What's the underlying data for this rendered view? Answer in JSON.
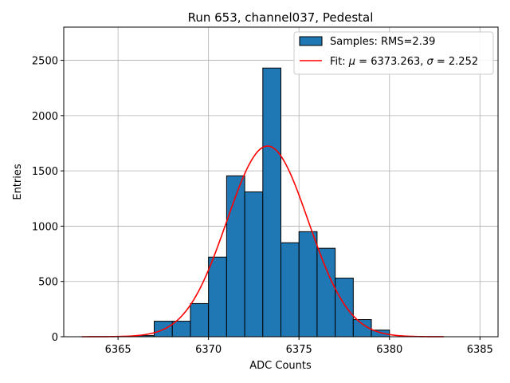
{
  "chart_data": {
    "type": "bar",
    "title": "Run 653, channel037, Pedestal",
    "xlabel": "ADC Counts",
    "ylabel": "Entries",
    "xlim": [
      6362,
      6386
    ],
    "ylim": [
      0,
      2800
    ],
    "xticks": [
      6365,
      6370,
      6375,
      6380,
      6385
    ],
    "yticks": [
      0,
      500,
      1000,
      1500,
      2000,
      2500
    ],
    "grid": true,
    "legend_position": "top-right",
    "bin_edges": [
      6366,
      6367,
      6368,
      6369,
      6370,
      6371,
      6372,
      6373,
      6374,
      6375,
      6376,
      6377,
      6378,
      6379,
      6380
    ],
    "counts": [
      10,
      140,
      140,
      300,
      720,
      1455,
      1310,
      2430,
      850,
      950,
      800,
      530,
      155,
      60
    ],
    "bar_color": "#1f77b4",
    "fit": {
      "mu": 6373.263,
      "sigma": 2.252,
      "amplitude": 1725,
      "x_range": [
        6363,
        6383
      ],
      "color": "#ff0000"
    },
    "legend": [
      {
        "kind": "bar",
        "label": "Samples: RMS=2.39"
      },
      {
        "kind": "line",
        "label_prefix": "Fit: ",
        "mu_symbol": "μ",
        "mu_text": " = 6373.263, ",
        "sigma_symbol": "σ",
        "sigma_text": " = 2.252"
      }
    ]
  }
}
